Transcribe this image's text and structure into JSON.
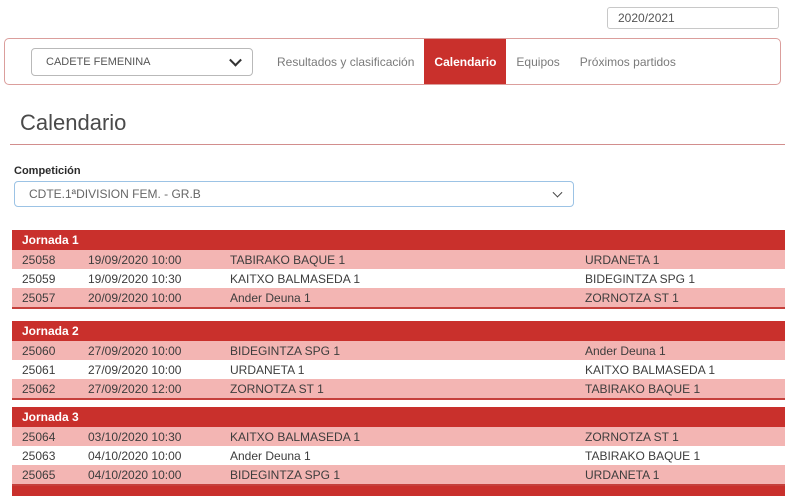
{
  "colors": {
    "accent_red": "#c9302c",
    "row_pink": "#f3b5b3",
    "nav_border_pink": "#db9e9c",
    "competition_select_border_blue": "#9cc3e5"
  },
  "topbar": {
    "season_value": "2020/2021"
  },
  "navbar": {
    "category_selected": "CADETE FEMENINA",
    "tabs": [
      {
        "label": "Resultados y clasificación"
      },
      {
        "label": "Calendario"
      },
      {
        "label": "Equipos"
      },
      {
        "label": "Próximos partidos"
      }
    ],
    "active_tab": "Calendario"
  },
  "page": {
    "title": "Calendario"
  },
  "competition": {
    "label": "Competición",
    "selected": "CDTE.1ªDIVISION FEM. - GR.B"
  },
  "calendar": {
    "jornadas": [
      {
        "title": "Jornada 1",
        "matches": [
          {
            "id": "25058",
            "datetime": "19/09/2020 10:00",
            "home": "TABIRAKO BAQUE 1",
            "away": "URDANETA 1"
          },
          {
            "id": "25059",
            "datetime": "19/09/2020 10:30",
            "home": "KAITXO BALMASEDA 1",
            "away": "BIDEGINTZA SPG 1"
          },
          {
            "id": "25057",
            "datetime": "20/09/2020 10:00",
            "home": "Ander Deuna 1",
            "away": "ZORNOTZA ST 1"
          }
        ]
      },
      {
        "title": "Jornada 2",
        "matches": [
          {
            "id": "25060",
            "datetime": "27/09/2020 10:00",
            "home": "BIDEGINTZA SPG 1",
            "away": "Ander Deuna 1"
          },
          {
            "id": "25061",
            "datetime": "27/09/2020 10:00",
            "home": "URDANETA 1",
            "away": "KAITXO BALMASEDA 1"
          },
          {
            "id": "25062",
            "datetime": "27/09/2020 12:00",
            "home": "ZORNOTZA ST 1",
            "away": "TABIRAKO BAQUE 1"
          }
        ]
      },
      {
        "title": "Jornada 3",
        "matches": [
          {
            "id": "25064",
            "datetime": "03/10/2020 10:30",
            "home": "KAITXO BALMASEDA 1",
            "away": "ZORNOTZA ST 1"
          },
          {
            "id": "25063",
            "datetime": "04/10/2020 10:00",
            "home": "Ander Deuna 1",
            "away": "TABIRAKO BAQUE 1"
          },
          {
            "id": "25065",
            "datetime": "04/10/2020 10:00",
            "home": "BIDEGINTZA SPG 1",
            "away": "URDANETA 1"
          }
        ]
      }
    ]
  }
}
